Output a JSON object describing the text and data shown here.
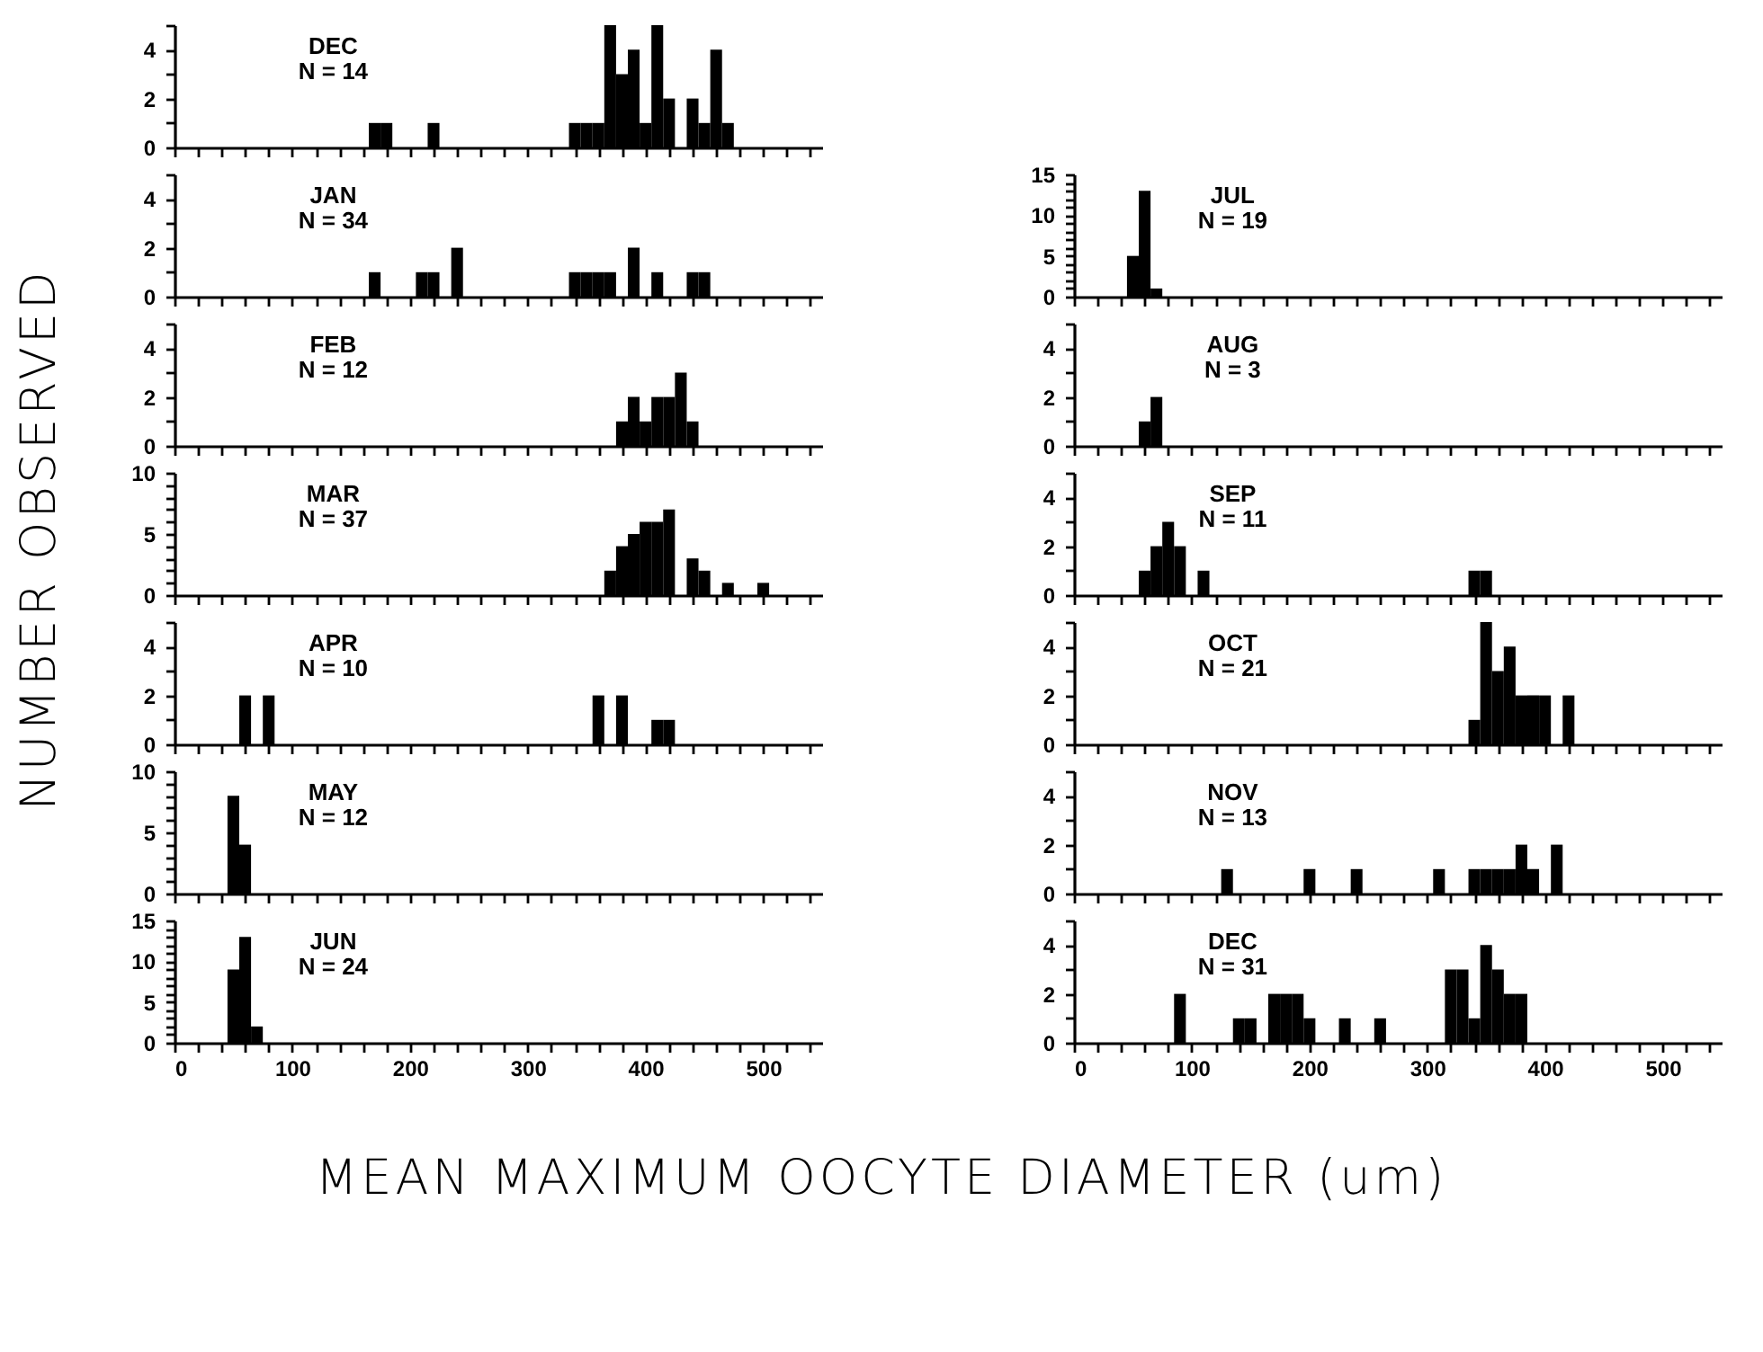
{
  "chart_data": [
    {
      "type": "histogram",
      "title": "DEC",
      "subtitle": "N = 14",
      "ylabel": "NUMBER OBSERVED",
      "color": "#000000",
      "bins": [
        165,
        175,
        185,
        195,
        205,
        215,
        225,
        235,
        245,
        255,
        265,
        275,
        285,
        295,
        305,
        315,
        325,
        335,
        345,
        355,
        365,
        375,
        385,
        395,
        405,
        415,
        425,
        435,
        445,
        455,
        465,
        475
      ],
      "values": [
        1,
        1,
        0,
        0,
        0,
        1,
        0,
        0,
        0,
        0,
        0,
        0,
        0,
        0,
        0,
        0,
        0,
        1,
        1,
        1,
        5,
        3,
        4,
        1,
        5,
        2,
        0,
        2,
        1,
        4,
        1
      ],
      "xlim": [
        0,
        550
      ],
      "ylim": [
        0,
        5
      ],
      "xticks": [
        0,
        {
          "value": 20,
          "label": null
        },
        {
          "value": 40,
          "label": null
        },
        {
          "value": 60,
          "label": null
        },
        {
          "value": 80,
          "label": null
        },
        100,
        {
          "value": 120,
          "label": null
        },
        {
          "value": 140,
          "label": null
        },
        {
          "value": 160,
          "label": null
        },
        {
          "value": 180,
          "label": null
        },
        200,
        {
          "value": 220,
          "label": null
        },
        {
          "value": 240,
          "label": null
        },
        {
          "value": 260,
          "label": null
        },
        {
          "value": 280,
          "label": null
        },
        300,
        {
          "value": 320,
          "label": null
        },
        {
          "value": 340,
          "label": null
        },
        {
          "value": 360,
          "label": null
        },
        {
          "value": 380,
          "label": null
        },
        400,
        {
          "value": 420,
          "label": null
        },
        {
          "value": 440,
          "label": null
        },
        {
          "value": 460,
          "label": null
        },
        {
          "value": 480,
          "label": null
        },
        500,
        {
          "value": 520,
          "label": null
        },
        {
          "value": 540,
          "label": null
        }
      ],
      "yticks": [
        0,
        {
          "value": 1,
          "label": null
        },
        2,
        {
          "value": 3,
          "label": null
        },
        4,
        {
          "value": 5,
          "label": null
        }
      ],
      "tick_labels": "y"
    },
    {
      "type": "histogram",
      "title": "JAN",
      "subtitle": "N = 34",
      "color": "#000000",
      "bins": [
        165,
        175,
        185,
        195,
        205,
        215,
        225,
        235,
        245,
        255,
        265,
        275,
        285,
        295,
        305,
        315,
        325,
        335,
        345,
        355,
        365,
        375,
        385,
        395,
        405,
        415,
        425,
        435,
        445,
        455
      ],
      "values": [
        1,
        0,
        0,
        0,
        1,
        1,
        0,
        2,
        0,
        0,
        0,
        0,
        0,
        0,
        0,
        0,
        0,
        1,
        1,
        1,
        1,
        0,
        2,
        0,
        1,
        0,
        0,
        1,
        1
      ],
      "xlim": [
        0,
        550
      ],
      "ylim": [
        0,
        5
      ],
      "xticks": [
        0,
        {
          "value": 20,
          "label": null
        },
        {
          "value": 40,
          "label": null
        },
        {
          "value": 60,
          "label": null
        },
        {
          "value": 80,
          "label": null
        },
        100,
        {
          "value": 120,
          "label": null
        },
        {
          "value": 140,
          "label": null
        },
        {
          "value": 160,
          "label": null
        },
        {
          "value": 180,
          "label": null
        },
        200,
        {
          "value": 220,
          "label": null
        },
        {
          "value": 240,
          "label": null
        },
        {
          "value": 260,
          "label": null
        },
        {
          "value": 280,
          "label": null
        },
        300,
        {
          "value": 320,
          "label": null
        },
        {
          "value": 340,
          "label": null
        },
        {
          "value": 360,
          "label": null
        },
        {
          "value": 380,
          "label": null
        },
        400,
        {
          "value": 420,
          "label": null
        },
        {
          "value": 440,
          "label": null
        },
        {
          "value": 460,
          "label": null
        },
        {
          "value": 480,
          "label": null
        },
        500,
        {
          "value": 520,
          "label": null
        },
        {
          "value": 540,
          "label": null
        }
      ],
      "yticks": [
        0,
        {
          "value": 1,
          "label": null
        },
        2,
        {
          "value": 3,
          "label": null
        },
        4,
        {
          "value": 5,
          "label": null
        }
      ],
      "tick_labels": "y"
    },
    {
      "type": "histogram",
      "title": "FEB",
      "subtitle": "N = 12",
      "color": "#000000",
      "bins": [
        375,
        385,
        395,
        405,
        415,
        425,
        435,
        445
      ],
      "values": [
        1,
        2,
        1,
        2,
        2,
        3,
        1
      ],
      "xlim": [
        0,
        550
      ],
      "ylim": [
        0,
        5
      ],
      "xticks": [
        0,
        {
          "value": 20,
          "label": null
        },
        {
          "value": 40,
          "label": null
        },
        {
          "value": 60,
          "label": null
        },
        {
          "value": 80,
          "label": null
        },
        100,
        {
          "value": 120,
          "label": null
        },
        {
          "value": 140,
          "label": null
        },
        {
          "value": 160,
          "label": null
        },
        {
          "value": 180,
          "label": null
        },
        200,
        {
          "value": 220,
          "label": null
        },
        {
          "value": 240,
          "label": null
        },
        {
          "value": 260,
          "label": null
        },
        {
          "value": 280,
          "label": null
        },
        300,
        {
          "value": 320,
          "label": null
        },
        {
          "value": 340,
          "label": null
        },
        {
          "value": 360,
          "label": null
        },
        {
          "value": 380,
          "label": null
        },
        400,
        {
          "value": 420,
          "label": null
        },
        {
          "value": 440,
          "label": null
        },
        {
          "value": 460,
          "label": null
        },
        {
          "value": 480,
          "label": null
        },
        500,
        {
          "value": 520,
          "label": null
        },
        {
          "value": 540,
          "label": null
        }
      ],
      "yticks": [
        0,
        {
          "value": 1,
          "label": null
        },
        2,
        {
          "value": 3,
          "label": null
        },
        4,
        {
          "value": 5,
          "label": null
        }
      ],
      "tick_labels": "y"
    },
    {
      "type": "histogram",
      "title": "MAR",
      "subtitle": "N = 37",
      "color": "#000000",
      "bins": [
        365,
        375,
        385,
        395,
        405,
        415,
        425,
        435,
        445,
        455,
        465,
        475,
        485,
        495,
        505
      ],
      "values": [
        2,
        4,
        5,
        6,
        6,
        7,
        0,
        3,
        2,
        0,
        1,
        0,
        0,
        1
      ],
      "xlim": [
        0,
        550
      ],
      "ylim": [
        0,
        10
      ],
      "xticks": [
        0,
        {
          "value": 20,
          "label": null
        },
        {
          "value": 40,
          "label": null
        },
        {
          "value": 60,
          "label": null
        },
        {
          "value": 80,
          "label": null
        },
        100,
        {
          "value": 120,
          "label": null
        },
        {
          "value": 140,
          "label": null
        },
        {
          "value": 160,
          "label": null
        },
        {
          "value": 180,
          "label": null
        },
        200,
        {
          "value": 220,
          "label": null
        },
        {
          "value": 240,
          "label": null
        },
        {
          "value": 260,
          "label": null
        },
        {
          "value": 280,
          "label": null
        },
        300,
        {
          "value": 320,
          "label": null
        },
        {
          "value": 340,
          "label": null
        },
        {
          "value": 360,
          "label": null
        },
        {
          "value": 380,
          "label": null
        },
        400,
        {
          "value": 420,
          "label": null
        },
        {
          "value": 440,
          "label": null
        },
        {
          "value": 460,
          "label": null
        },
        {
          "value": 480,
          "label": null
        },
        500,
        {
          "value": 520,
          "label": null
        },
        {
          "value": 540,
          "label": null
        }
      ],
      "yticks": [
        0,
        {
          "value": 1,
          "label": null
        },
        {
          "value": 2,
          "label": null
        },
        {
          "value": 3,
          "label": null
        },
        {
          "value": 4,
          "label": null
        },
        5,
        {
          "value": 6,
          "label": null
        },
        {
          "value": 7,
          "label": null
        },
        {
          "value": 8,
          "label": null
        },
        {
          "value": 9,
          "label": null
        },
        10
      ],
      "tick_labels": "y"
    },
    {
      "type": "histogram",
      "title": "APR",
      "subtitle": "N = 10",
      "color": "#000000",
      "bins": [
        55,
        65,
        75,
        85,
        95,
        105,
        115,
        125,
        135,
        145,
        155,
        165,
        175,
        185,
        195,
        205,
        215,
        225,
        235,
        245,
        255,
        265,
        275,
        285,
        295,
        305,
        315,
        325,
        335,
        345,
        355,
        365,
        375,
        385,
        395,
        405,
        415,
        425
      ],
      "values": [
        2,
        0,
        2,
        0,
        0,
        0,
        0,
        0,
        0,
        0,
        0,
        0,
        0,
        0,
        0,
        0,
        0,
        0,
        0,
        0,
        0,
        0,
        0,
        0,
        0,
        0,
        0,
        0,
        0,
        0,
        2,
        0,
        2,
        0,
        0,
        1,
        1
      ],
      "xlim": [
        0,
        550
      ],
      "ylim": [
        0,
        5
      ],
      "xticks": [
        0,
        {
          "value": 20,
          "label": null
        },
        {
          "value": 40,
          "label": null
        },
        {
          "value": 60,
          "label": null
        },
        {
          "value": 80,
          "label": null
        },
        100,
        {
          "value": 120,
          "label": null
        },
        {
          "value": 140,
          "label": null
        },
        {
          "value": 160,
          "label": null
        },
        {
          "value": 180,
          "label": null
        },
        200,
        {
          "value": 220,
          "label": null
        },
        {
          "value": 240,
          "label": null
        },
        {
          "value": 260,
          "label": null
        },
        {
          "value": 280,
          "label": null
        },
        300,
        {
          "value": 320,
          "label": null
        },
        {
          "value": 340,
          "label": null
        },
        {
          "value": 360,
          "label": null
        },
        {
          "value": 380,
          "label": null
        },
        400,
        {
          "value": 420,
          "label": null
        },
        {
          "value": 440,
          "label": null
        },
        {
          "value": 460,
          "label": null
        },
        {
          "value": 480,
          "label": null
        },
        500,
        {
          "value": 520,
          "label": null
        },
        {
          "value": 540,
          "label": null
        }
      ],
      "yticks": [
        0,
        {
          "value": 1,
          "label": null
        },
        2,
        {
          "value": 3,
          "label": null
        },
        4,
        {
          "value": 5,
          "label": null
        }
      ],
      "tick_labels": "y"
    },
    {
      "type": "histogram",
      "title": "MAY",
      "subtitle": "N = 12",
      "color": "#000000",
      "bins": [
        45,
        55,
        65
      ],
      "values": [
        8,
        4
      ],
      "xlim": [
        0,
        550
      ],
      "ylim": [
        0,
        10
      ],
      "xticks": [
        0,
        {
          "value": 20,
          "label": null
        },
        {
          "value": 40,
          "label": null
        },
        {
          "value": 60,
          "label": null
        },
        {
          "value": 80,
          "label": null
        },
        100,
        {
          "value": 120,
          "label": null
        },
        {
          "value": 140,
          "label": null
        },
        {
          "value": 160,
          "label": null
        },
        {
          "value": 180,
          "label": null
        },
        200,
        {
          "value": 220,
          "label": null
        },
        {
          "value": 240,
          "label": null
        },
        {
          "value": 260,
          "label": null
        },
        {
          "value": 280,
          "label": null
        },
        300,
        {
          "value": 320,
          "label": null
        },
        {
          "value": 340,
          "label": null
        },
        {
          "value": 360,
          "label": null
        },
        {
          "value": 380,
          "label": null
        },
        400,
        {
          "value": 420,
          "label": null
        },
        {
          "value": 440,
          "label": null
        },
        {
          "value": 460,
          "label": null
        },
        {
          "value": 480,
          "label": null
        },
        500,
        {
          "value": 520,
          "label": null
        },
        {
          "value": 540,
          "label": null
        }
      ],
      "yticks": [
        0,
        {
          "value": 1,
          "label": null
        },
        {
          "value": 2,
          "label": null
        },
        {
          "value": 3,
          "label": null
        },
        {
          "value": 4,
          "label": null
        },
        5,
        {
          "value": 6,
          "label": null
        },
        {
          "value": 7,
          "label": null
        },
        {
          "value": 8,
          "label": null
        },
        {
          "value": 9,
          "label": null
        },
        10
      ],
      "tick_labels": "y"
    },
    {
      "type": "histogram",
      "title": "JUN",
      "subtitle": "N = 24",
      "xlabel": "MEAN MAXIMUM OOCYTE DIAMETER (um)",
      "color": "#000000",
      "bins": [
        45,
        55,
        65,
        75
      ],
      "values": [
        9,
        13,
        2
      ],
      "xlim": [
        0,
        550
      ],
      "ylim": [
        0,
        15
      ],
      "xticks": [
        0,
        {
          "value": 20,
          "label": null
        },
        {
          "value": 40,
          "label": null
        },
        {
          "value": 60,
          "label": null
        },
        {
          "value": 80,
          "label": null
        },
        100,
        {
          "value": 120,
          "label": null
        },
        {
          "value": 140,
          "label": null
        },
        {
          "value": 160,
          "label": null
        },
        {
          "value": 180,
          "label": null
        },
        200,
        {
          "value": 220,
          "label": null
        },
        {
          "value": 240,
          "label": null
        },
        {
          "value": 260,
          "label": null
        },
        {
          "value": 280,
          "label": null
        },
        300,
        {
          "value": 320,
          "label": null
        },
        {
          "value": 340,
          "label": null
        },
        {
          "value": 360,
          "label": null
        },
        {
          "value": 380,
          "label": null
        },
        400,
        {
          "value": 420,
          "label": null
        },
        {
          "value": 440,
          "label": null
        },
        {
          "value": 460,
          "label": null
        },
        {
          "value": 480,
          "label": null
        },
        500,
        {
          "value": 520,
          "label": null
        },
        {
          "value": 540,
          "label": null
        }
      ],
      "yticks": [
        0,
        {
          "value": 1,
          "label": null
        },
        {
          "value": 2,
          "label": null
        },
        {
          "value": 3,
          "label": null
        },
        {
          "value": 4,
          "label": null
        },
        5,
        {
          "value": 6,
          "label": null
        },
        {
          "value": 7,
          "label": null
        },
        {
          "value": 8,
          "label": null
        },
        {
          "value": 9,
          "label": null
        },
        10,
        {
          "value": 11,
          "label": null
        },
        {
          "value": 12,
          "label": null
        },
        {
          "value": 13,
          "label": null
        },
        {
          "value": 14,
          "label": null
        },
        15
      ]
    },
    {
      "type": "histogram",
      "title": "JUL",
      "subtitle": "N = 19",
      "color": "#000000",
      "bins": [
        45,
        55,
        65,
        75
      ],
      "values": [
        5,
        13,
        1
      ],
      "xlim": [
        0,
        550
      ],
      "ylim": [
        0,
        15
      ],
      "xticks": [
        0,
        {
          "value": 20,
          "label": null
        },
        {
          "value": 40,
          "label": null
        },
        {
          "value": 60,
          "label": null
        },
        {
          "value": 80,
          "label": null
        },
        100,
        {
          "value": 120,
          "label": null
        },
        {
          "value": 140,
          "label": null
        },
        {
          "value": 160,
          "label": null
        },
        {
          "value": 180,
          "label": null
        },
        200,
        {
          "value": 220,
          "label": null
        },
        {
          "value": 240,
          "label": null
        },
        {
          "value": 260,
          "label": null
        },
        {
          "value": 280,
          "label": null
        },
        300,
        {
          "value": 320,
          "label": null
        },
        {
          "value": 340,
          "label": null
        },
        {
          "value": 360,
          "label": null
        },
        {
          "value": 380,
          "label": null
        },
        400,
        {
          "value": 420,
          "label": null
        },
        {
          "value": 440,
          "label": null
        },
        {
          "value": 460,
          "label": null
        },
        {
          "value": 480,
          "label": null
        },
        500,
        {
          "value": 520,
          "label": null
        },
        {
          "value": 540,
          "label": null
        }
      ],
      "yticks": [
        0,
        {
          "value": 1,
          "label": null
        },
        {
          "value": 2,
          "label": null
        },
        {
          "value": 3,
          "label": null
        },
        {
          "value": 4,
          "label": null
        },
        5,
        {
          "value": 6,
          "label": null
        },
        {
          "value": 7,
          "label": null
        },
        {
          "value": 8,
          "label": null
        },
        {
          "value": 9,
          "label": null
        },
        10,
        {
          "value": 11,
          "label": null
        },
        {
          "value": 12,
          "label": null
        },
        {
          "value": 13,
          "label": null
        },
        {
          "value": 14,
          "label": null
        },
        15
      ],
      "tick_labels": "y"
    },
    {
      "type": "histogram",
      "title": "AUG",
      "subtitle": "N = 3",
      "color": "#000000",
      "bins": [
        55,
        65,
        75
      ],
      "values": [
        1,
        2
      ],
      "xlim": [
        0,
        550
      ],
      "ylim": [
        0,
        5
      ],
      "xticks": [
        0,
        {
          "value": 20,
          "label": null
        },
        {
          "value": 40,
          "label": null
        },
        {
          "value": 60,
          "label": null
        },
        {
          "value": 80,
          "label": null
        },
        100,
        {
          "value": 120,
          "label": null
        },
        {
          "value": 140,
          "label": null
        },
        {
          "value": 160,
          "label": null
        },
        {
          "value": 180,
          "label": null
        },
        200,
        {
          "value": 220,
          "label": null
        },
        {
          "value": 240,
          "label": null
        },
        {
          "value": 260,
          "label": null
        },
        {
          "value": 280,
          "label": null
        },
        300,
        {
          "value": 320,
          "label": null
        },
        {
          "value": 340,
          "label": null
        },
        {
          "value": 360,
          "label": null
        },
        {
          "value": 380,
          "label": null
        },
        400,
        {
          "value": 420,
          "label": null
        },
        {
          "value": 440,
          "label": null
        },
        {
          "value": 460,
          "label": null
        },
        {
          "value": 480,
          "label": null
        },
        500,
        {
          "value": 520,
          "label": null
        },
        {
          "value": 540,
          "label": null
        }
      ],
      "yticks": [
        0,
        {
          "value": 1,
          "label": null
        },
        2,
        {
          "value": 3,
          "label": null
        },
        4,
        {
          "value": 5,
          "label": null
        }
      ],
      "tick_labels": "y"
    },
    {
      "type": "histogram",
      "title": "SEP",
      "subtitle": "N = 11",
      "color": "#000000",
      "bins": [
        55,
        65,
        75,
        85,
        95,
        105,
        115,
        125,
        135,
        145,
        155,
        165,
        175,
        185,
        195,
        205,
        215,
        225,
        235,
        245,
        255,
        265,
        275,
        285,
        295,
        305,
        315,
        325,
        335,
        345,
        355
      ],
      "values": [
        1,
        2,
        3,
        2,
        0,
        1,
        0,
        0,
        0,
        0,
        0,
        0,
        0,
        0,
        0,
        0,
        0,
        0,
        0,
        0,
        0,
        0,
        0,
        0,
        0,
        0,
        0,
        0,
        1,
        1
      ],
      "xlim": [
        0,
        550
      ],
      "ylim": [
        0,
        5
      ],
      "xticks": [
        0,
        {
          "value": 20,
          "label": null
        },
        {
          "value": 40,
          "label": null
        },
        {
          "value": 60,
          "label": null
        },
        {
          "value": 80,
          "label": null
        },
        100,
        {
          "value": 120,
          "label": null
        },
        {
          "value": 140,
          "label": null
        },
        {
          "value": 160,
          "label": null
        },
        {
          "value": 180,
          "label": null
        },
        200,
        {
          "value": 220,
          "label": null
        },
        {
          "value": 240,
          "label": null
        },
        {
          "value": 260,
          "label": null
        },
        {
          "value": 280,
          "label": null
        },
        300,
        {
          "value": 320,
          "label": null
        },
        {
          "value": 340,
          "label": null
        },
        {
          "value": 360,
          "label": null
        },
        {
          "value": 380,
          "label": null
        },
        400,
        {
          "value": 420,
          "label": null
        },
        {
          "value": 440,
          "label": null
        },
        {
          "value": 460,
          "label": null
        },
        {
          "value": 480,
          "label": null
        },
        500,
        {
          "value": 520,
          "label": null
        },
        {
          "value": 540,
          "label": null
        }
      ],
      "yticks": [
        0,
        {
          "value": 1,
          "label": null
        },
        2,
        {
          "value": 3,
          "label": null
        },
        4,
        {
          "value": 5,
          "label": null
        }
      ],
      "tick_labels": "y"
    },
    {
      "type": "histogram",
      "title": "OCT",
      "subtitle": "N = 21",
      "color": "#000000",
      "bins": [
        335,
        345,
        355,
        365,
        375,
        385,
        395,
        405,
        415,
        425
      ],
      "values": [
        1,
        5,
        3,
        4,
        2,
        2,
        2,
        0,
        2
      ],
      "xlim": [
        0,
        550
      ],
      "ylim": [
        0,
        5
      ],
      "xticks": [
        0,
        {
          "value": 20,
          "label": null
        },
        {
          "value": 40,
          "label": null
        },
        {
          "value": 60,
          "label": null
        },
        {
          "value": 80,
          "label": null
        },
        100,
        {
          "value": 120,
          "label": null
        },
        {
          "value": 140,
          "label": null
        },
        {
          "value": 160,
          "label": null
        },
        {
          "value": 180,
          "label": null
        },
        200,
        {
          "value": 220,
          "label": null
        },
        {
          "value": 240,
          "label": null
        },
        {
          "value": 260,
          "label": null
        },
        {
          "value": 280,
          "label": null
        },
        300,
        {
          "value": 320,
          "label": null
        },
        {
          "value": 340,
          "label": null
        },
        {
          "value": 360,
          "label": null
        },
        {
          "value": 380,
          "label": null
        },
        400,
        {
          "value": 420,
          "label": null
        },
        {
          "value": 440,
          "label": null
        },
        {
          "value": 460,
          "label": null
        },
        {
          "value": 480,
          "label": null
        },
        500,
        {
          "value": 520,
          "label": null
        },
        {
          "value": 540,
          "label": null
        }
      ],
      "yticks": [
        0,
        {
          "value": 1,
          "label": null
        },
        2,
        {
          "value": 3,
          "label": null
        },
        4,
        {
          "value": 5,
          "label": null
        }
      ],
      "tick_labels": "y"
    },
    {
      "type": "histogram",
      "title": "NOV",
      "subtitle": "N = 13",
      "color": "#000000",
      "bins": [
        125,
        135,
        145,
        155,
        165,
        175,
        185,
        195,
        205,
        215,
        225,
        235,
        245,
        255,
        265,
        275,
        285,
        295,
        305,
        315,
        325,
        335,
        345,
        355,
        365,
        375,
        385,
        395,
        405,
        415
      ],
      "values": [
        1,
        0,
        0,
        0,
        0,
        0,
        0,
        1,
        0,
        0,
        0,
        1,
        0,
        0,
        0,
        0,
        0,
        0,
        1,
        0,
        0,
        1,
        1,
        1,
        1,
        2,
        1,
        0,
        2
      ],
      "xlim": [
        0,
        550
      ],
      "ylim": [
        0,
        5
      ],
      "xticks": [
        0,
        {
          "value": 20,
          "label": null
        },
        {
          "value": 40,
          "label": null
        },
        {
          "value": 60,
          "label": null
        },
        {
          "value": 80,
          "label": null
        },
        100,
        {
          "value": 120,
          "label": null
        },
        {
          "value": 140,
          "label": null
        },
        {
          "value": 160,
          "label": null
        },
        {
          "value": 180,
          "label": null
        },
        200,
        {
          "value": 220,
          "label": null
        },
        {
          "value": 240,
          "label": null
        },
        {
          "value": 260,
          "label": null
        },
        {
          "value": 280,
          "label": null
        },
        300,
        {
          "value": 320,
          "label": null
        },
        {
          "value": 340,
          "label": null
        },
        {
          "value": 360,
          "label": null
        },
        {
          "value": 380,
          "label": null
        },
        400,
        {
          "value": 420,
          "label": null
        },
        {
          "value": 440,
          "label": null
        },
        {
          "value": 460,
          "label": null
        },
        {
          "value": 480,
          "label": null
        },
        500,
        {
          "value": 520,
          "label": null
        },
        {
          "value": 540,
          "label": null
        }
      ],
      "yticks": [
        0,
        {
          "value": 1,
          "label": null
        },
        2,
        {
          "value": 3,
          "label": null
        },
        4,
        {
          "value": 5,
          "label": null
        }
      ],
      "tick_labels": "y"
    },
    {
      "type": "histogram",
      "title": "DEC",
      "subtitle": "N = 31",
      "color": "#000000",
      "bins": [
        85,
        95,
        105,
        115,
        125,
        135,
        145,
        155,
        165,
        175,
        185,
        195,
        205,
        215,
        225,
        235,
        245,
        255,
        265,
        275,
        285,
        295,
        305,
        315,
        325,
        335,
        345,
        355,
        365,
        375,
        385
      ],
      "values": [
        2,
        0,
        0,
        0,
        0,
        1,
        1,
        0,
        2,
        2,
        2,
        1,
        0,
        0,
        1,
        0,
        0,
        1,
        0,
        0,
        0,
        0,
        0,
        3,
        3,
        1,
        4,
        3,
        2,
        2
      ],
      "xlim": [
        0,
        550
      ],
      "ylim": [
        0,
        5
      ],
      "xticks": [
        0,
        {
          "value": 20,
          "label": null
        },
        {
          "value": 40,
          "label": null
        },
        {
          "value": 60,
          "label": null
        },
        {
          "value": 80,
          "label": null
        },
        100,
        {
          "value": 120,
          "label": null
        },
        {
          "value": 140,
          "label": null
        },
        {
          "value": 160,
          "label": null
        },
        {
          "value": 180,
          "label": null
        },
        200,
        {
          "value": 220,
          "label": null
        },
        {
          "value": 240,
          "label": null
        },
        {
          "value": 260,
          "label": null
        },
        {
          "value": 280,
          "label": null
        },
        300,
        {
          "value": 320,
          "label": null
        },
        {
          "value": 340,
          "label": null
        },
        {
          "value": 360,
          "label": null
        },
        {
          "value": 380,
          "label": null
        },
        400,
        {
          "value": 420,
          "label": null
        },
        {
          "value": 440,
          "label": null
        },
        {
          "value": 460,
          "label": null
        },
        {
          "value": 480,
          "label": null
        },
        500,
        {
          "value": 520,
          "label": null
        },
        {
          "value": 540,
          "label": null
        }
      ],
      "yticks": [
        0,
        {
          "value": 1,
          "label": null
        },
        2,
        {
          "value": 3,
          "label": null
        },
        4,
        {
          "value": 5,
          "label": null
        }
      ]
    }
  ]
}
